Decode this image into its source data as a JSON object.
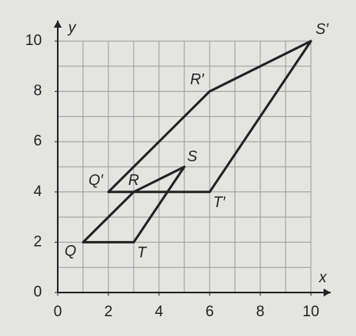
{
  "chart_data": {
    "type": "polygon",
    "x_label": "x",
    "y_label": "y",
    "xlim": [
      0,
      10
    ],
    "ylim": [
      0,
      10
    ],
    "xticks": [
      0,
      2,
      4,
      6,
      8,
      10
    ],
    "yticks": [
      0,
      2,
      4,
      6,
      8,
      10
    ],
    "grid": true,
    "grid_step": 1,
    "color": "#222222",
    "shapes": [
      {
        "labels": [
          "Q",
          "R",
          "S",
          "T"
        ],
        "x": [
          1,
          3,
          5,
          3
        ],
        "y": [
          2,
          4,
          5,
          2
        ]
      },
      {
        "labels": [
          "Q′",
          "R′",
          "S′",
          "T′"
        ],
        "x": [
          2,
          6,
          10,
          6
        ],
        "y": [
          4,
          8,
          10,
          4
        ]
      }
    ]
  }
}
